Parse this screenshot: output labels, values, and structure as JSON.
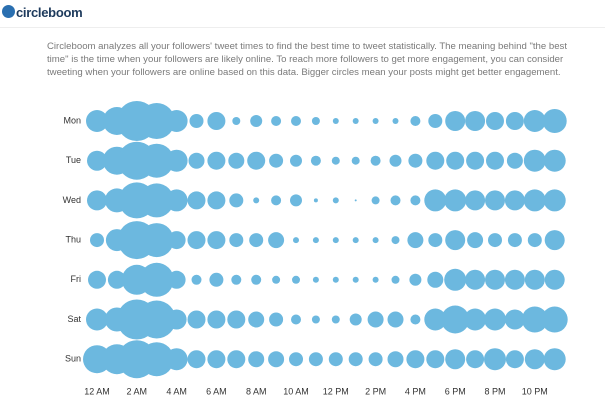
{
  "header": {
    "logo": "circleboom"
  },
  "description": "Circleboom analyzes all your followers' tweet times to find the best time to tweet statistically. The meaning behind \"the best time\" is the time when your followers are likely online. To reach more followers to get more engagement, you can consider tweeting when your followers are online based on this data. Bigger circles mean your posts might get better engagement.",
  "chart_data": {
    "type": "punchcard",
    "color": "#6cb8df",
    "categories": [
      "12 AM",
      null,
      "2 AM",
      null,
      "4 AM",
      null,
      "6 AM",
      null,
      "8 AM",
      null,
      "10 AM",
      null,
      "12 PM",
      null,
      "2 PM",
      null,
      "4 PM",
      null,
      "6 PM",
      null,
      "8 PM",
      null,
      "10 PM",
      null
    ],
    "series": [
      {
        "name": "Mon",
        "values": [
          11,
          14,
          20,
          18,
          11,
          7,
          9,
          4,
          6,
          5,
          5,
          4,
          3,
          3,
          3,
          3,
          5,
          7,
          10,
          10,
          9,
          9,
          11,
          12
        ]
      },
      {
        "name": "Tue",
        "values": [
          10,
          14,
          19,
          17,
          11,
          8,
          9,
          8,
          9,
          7,
          6,
          5,
          4,
          4,
          5,
          6,
          7,
          9,
          9,
          9,
          9,
          8,
          11,
          11
        ]
      },
      {
        "name": "Wed",
        "values": [
          10,
          12,
          18,
          17,
          11,
          9,
          9,
          7,
          3,
          5,
          6,
          2,
          3,
          1,
          4,
          5,
          5,
          11,
          11,
          10,
          10,
          10,
          11,
          11
        ]
      },
      {
        "name": "Thu",
        "values": [
          7,
          11,
          19,
          17,
          9,
          9,
          9,
          7,
          7,
          8,
          3,
          3,
          3,
          3,
          3,
          4,
          8,
          7,
          10,
          8,
          7,
          7,
          7,
          10
        ]
      },
      {
        "name": "Fri",
        "values": [
          9,
          9,
          15,
          17,
          9,
          5,
          7,
          5,
          5,
          4,
          4,
          3,
          3,
          3,
          3,
          4,
          6,
          8,
          11,
          10,
          10,
          10,
          10,
          10
        ]
      },
      {
        "name": "Sat",
        "values": [
          11,
          12,
          20,
          19,
          10,
          9,
          9,
          9,
          8,
          7,
          5,
          4,
          4,
          6,
          8,
          8,
          5,
          11,
          14,
          11,
          11,
          10,
          13,
          13
        ]
      },
      {
        "name": "Sun",
        "values": [
          14,
          15,
          19,
          17,
          11,
          9,
          9,
          9,
          8,
          8,
          7,
          7,
          7,
          7,
          7,
          8,
          9,
          9,
          10,
          9,
          11,
          9,
          10,
          11
        ]
      }
    ]
  }
}
